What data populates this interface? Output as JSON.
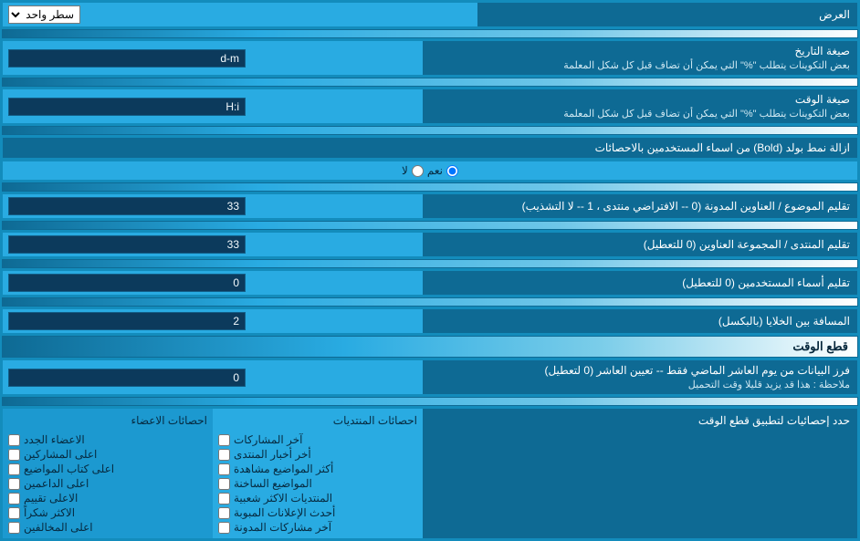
{
  "display_row": {
    "label": "العرض",
    "select_value": "سطر واحد"
  },
  "date_fmt": {
    "label": "صيغة التاريخ",
    "sub": "بعض التكوينات يتطلب \"%\" التي يمكن أن تضاف قبل كل شكل المعلمة",
    "value": "d-m"
  },
  "time_fmt": {
    "label": "صيغة الوقت",
    "sub": "بعض التكوينات يتطلب \"%\" التي يمكن أن تضاف قبل كل شكل المعلمة",
    "value": "H:i"
  },
  "bold_row": {
    "label": "ازالة نمط بولد (Bold) من اسماء المستخدمين بالاحصائات",
    "yes": "نعم",
    "no": "لا"
  },
  "trim_topics": {
    "label": "تقليم الموضوع / العناوين المدونة (0 -- الافتراضي منتدى ، 1 -- لا التشذيب)",
    "value": "33"
  },
  "trim_forum": {
    "label": "تقليم المنتدى / المجموعة العناوين (0 للتعطيل)",
    "value": "33"
  },
  "trim_users": {
    "label": "تقليم أسماء المستخدمين (0 للتعطيل)",
    "value": "0"
  },
  "cell_spacing": {
    "label": "المسافة بين الخلايا (بالبكسل)",
    "value": "2"
  },
  "section_header": "قطع الوقت",
  "sort_data": {
    "label": "فرز البيانات من يوم العاشر الماضي فقط -- تعيين العاشر (0 لتعطيل)",
    "sub": "ملاحظة : هذا قد يزيد قليلا وقت التحميل",
    "value": "0"
  },
  "stats": {
    "label": "حدد إحصائيات لتطبيق قطع الوقت",
    "col1_head": "احصائات المنتديات",
    "col2_head": "احصائات الاعضاء",
    "col1": [
      "آخر المشاركات",
      "أخر أخبار المنتدى",
      "أكثر المواضيع مشاهدة",
      "المواضيع الساخنة",
      "المنتديات الاكثر شعبية",
      "أحدث الإعلانات المبوبة",
      "آخر مشاركات المدونة"
    ],
    "col2": [
      "الاعضاء الجدد",
      "اعلى المشاركين",
      "اعلى كتاب المواضيع",
      "اعلى الداعمين",
      "الاعلى تقييم",
      "الاكثر شكراً",
      "اعلى المخالفين"
    ]
  }
}
